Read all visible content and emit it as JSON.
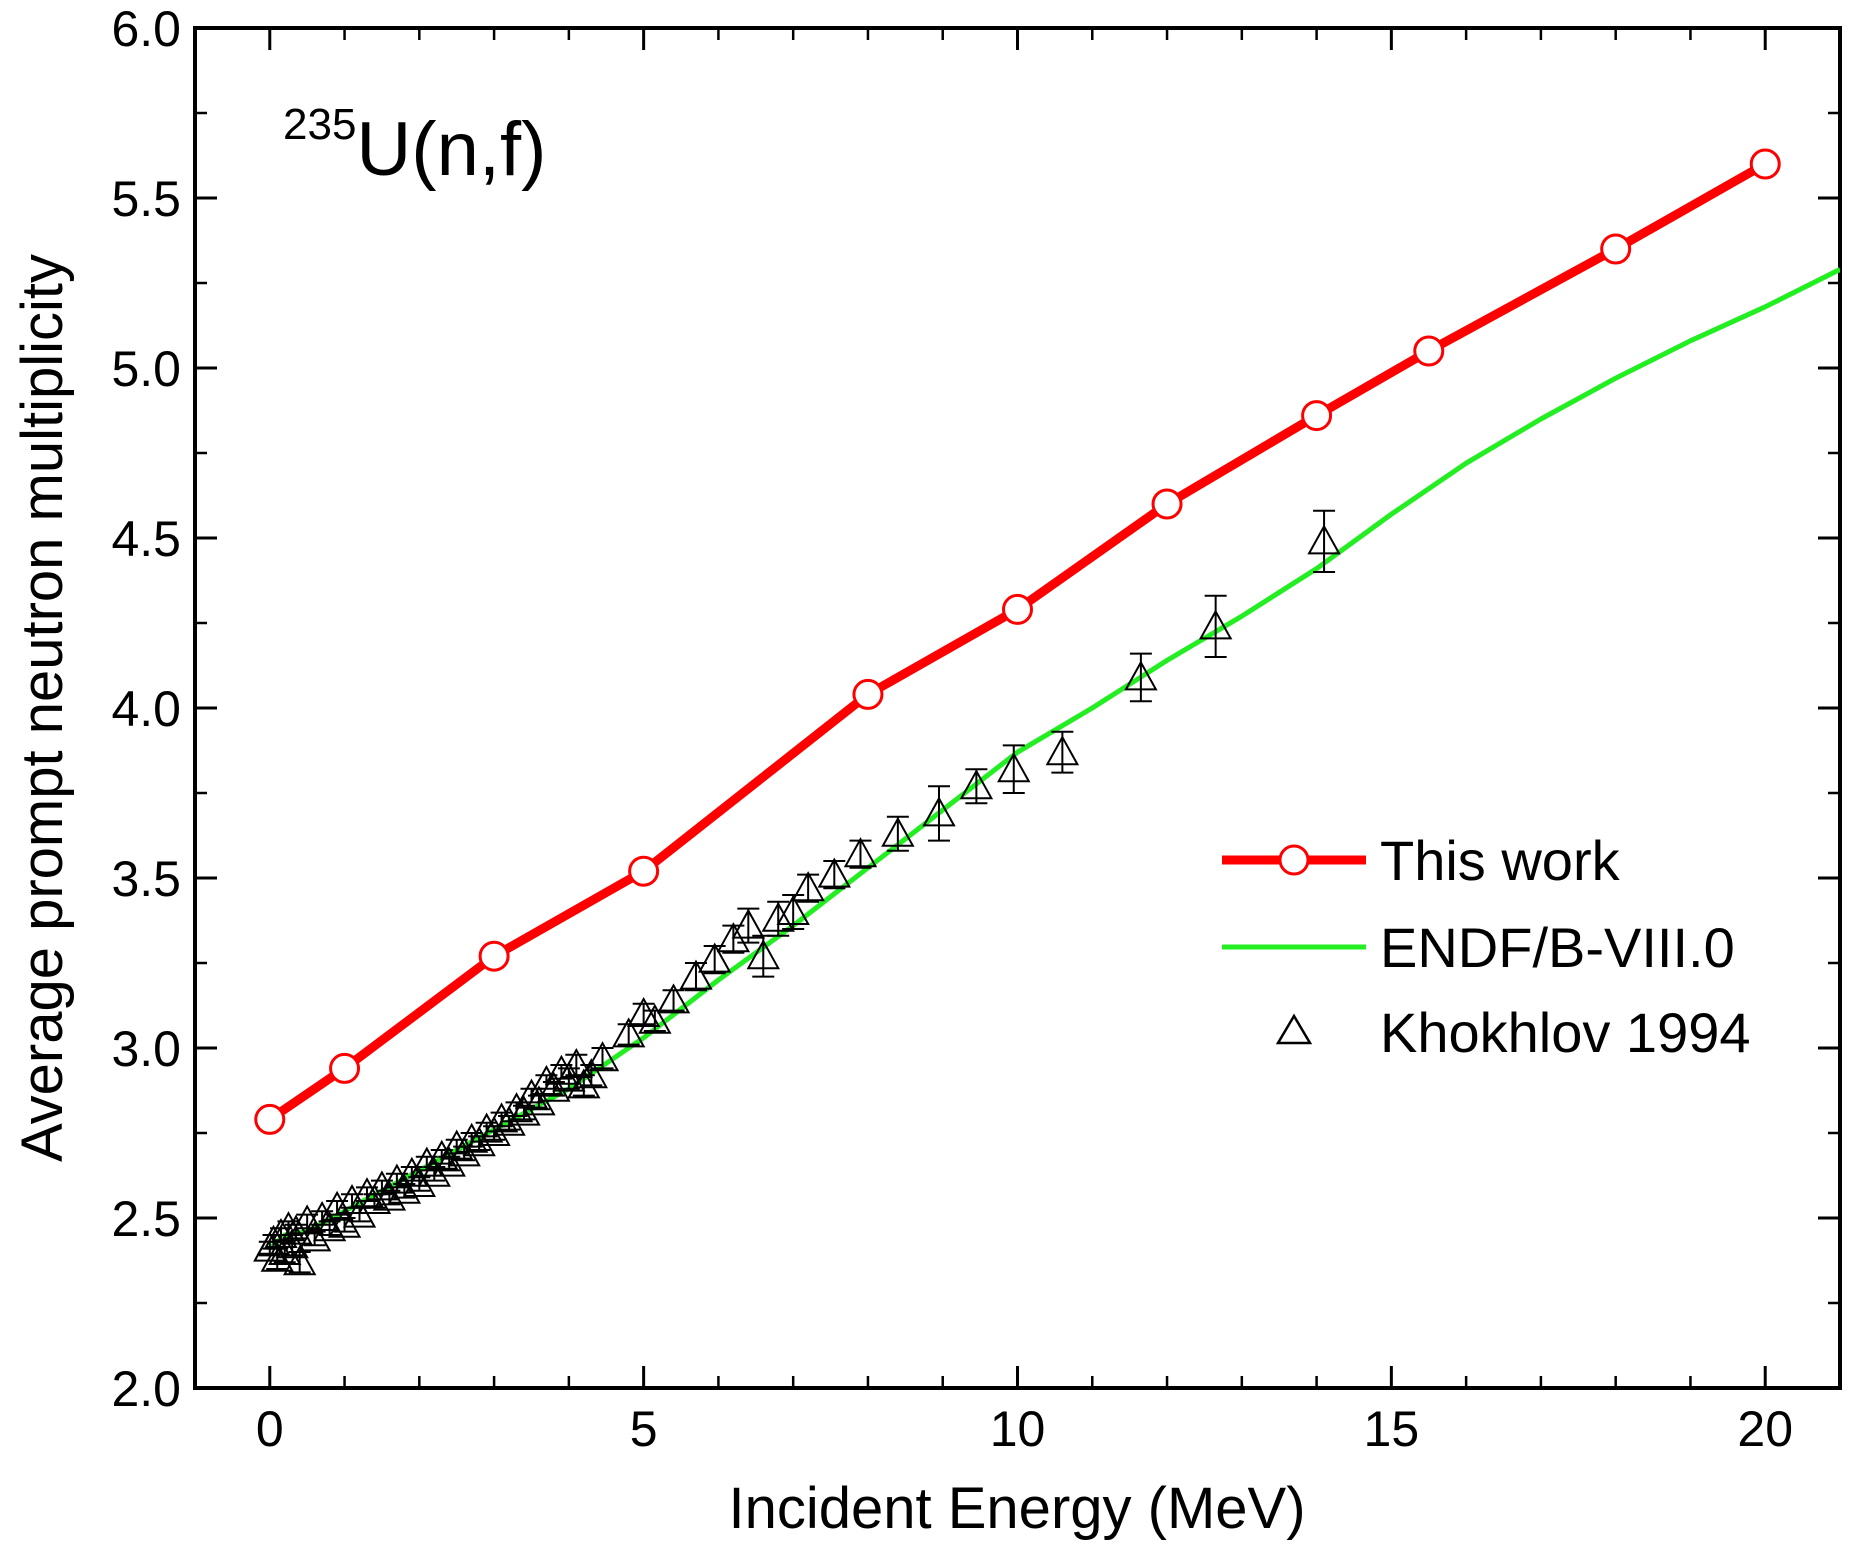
{
  "chart_data": {
    "type": "line",
    "xlabel": "Incident Energy (MeV)",
    "ylabel": "Average prompt neutron multiplicity",
    "xlim": [
      -1,
      21
    ],
    "ylim": [
      2.0,
      6.0
    ],
    "x_ticks": [
      0,
      5,
      10,
      15,
      20
    ],
    "y_ticks": [
      2.0,
      2.5,
      3.0,
      3.5,
      4.0,
      4.5,
      5.0,
      5.5,
      6.0
    ],
    "x_tick_labels": [
      "0",
      "5",
      "10",
      "15",
      "20"
    ],
    "y_tick_labels": [
      "2.0",
      "2.5",
      "3.0",
      "3.5",
      "4.0",
      "4.5",
      "5.0",
      "5.5",
      "6.0"
    ],
    "annotation": {
      "superscript": "235",
      "text": "U(n,f)"
    },
    "legend_position": "right",
    "series": [
      {
        "name": "This work",
        "style": "line-circle",
        "color": "#ff0000",
        "x": [
          0,
          1,
          3,
          5,
          8,
          10,
          12,
          14,
          15.5,
          18,
          20
        ],
        "y": [
          2.79,
          2.94,
          3.27,
          3.52,
          4.04,
          4.29,
          4.6,
          4.86,
          5.05,
          5.35,
          5.6
        ]
      },
      {
        "name": "ENDF/B-VIII.0",
        "style": "line",
        "color": "#22ee22",
        "x": [
          0,
          0.2,
          0.5,
          1,
          2,
          3,
          4,
          5,
          6,
          7,
          8,
          9,
          10,
          11,
          12,
          13,
          14,
          15,
          16,
          17,
          18,
          19,
          20,
          21
        ],
        "y": [
          2.41,
          2.45,
          2.46,
          2.52,
          2.64,
          2.76,
          2.88,
          3.03,
          3.2,
          3.36,
          3.53,
          3.7,
          3.87,
          4.0,
          4.14,
          4.27,
          4.41,
          4.57,
          4.72,
          4.85,
          4.97,
          5.08,
          5.18,
          5.29
        ]
      },
      {
        "name": "Khokhlov 1994",
        "style": "marker-triangle",
        "color": "#000000",
        "x": [
          0.0,
          0.05,
          0.1,
          0.15,
          0.2,
          0.25,
          0.3,
          0.35,
          0.4,
          0.5,
          0.6,
          0.7,
          0.8,
          0.9,
          1.0,
          1.1,
          1.2,
          1.3,
          1.4,
          1.5,
          1.6,
          1.7,
          1.8,
          1.9,
          2.0,
          2.1,
          2.2,
          2.3,
          2.4,
          2.5,
          2.6,
          2.7,
          2.8,
          2.9,
          3.0,
          3.1,
          3.2,
          3.3,
          3.4,
          3.5,
          3.6,
          3.7,
          3.8,
          3.9,
          4.0,
          4.1,
          4.2,
          4.3,
          4.45,
          4.8,
          5.0,
          5.15,
          5.4,
          5.7,
          5.95,
          6.2,
          6.4,
          6.6,
          6.8,
          7.0,
          7.2,
          7.55,
          7.9,
          8.4,
          8.95,
          9.45,
          9.95,
          10.6,
          11.65,
          12.65,
          14.1
        ],
        "y": [
          2.41,
          2.43,
          2.38,
          2.45,
          2.4,
          2.47,
          2.42,
          2.46,
          2.37,
          2.49,
          2.44,
          2.5,
          2.47,
          2.53,
          2.48,
          2.55,
          2.51,
          2.57,
          2.55,
          2.59,
          2.56,
          2.61,
          2.58,
          2.63,
          2.6,
          2.66,
          2.63,
          2.68,
          2.66,
          2.71,
          2.69,
          2.73,
          2.72,
          2.76,
          2.75,
          2.79,
          2.78,
          2.82,
          2.81,
          2.86,
          2.84,
          2.9,
          2.88,
          2.93,
          2.91,
          2.95,
          2.89,
          2.92,
          2.97,
          3.04,
          3.1,
          3.08,
          3.14,
          3.21,
          3.26,
          3.32,
          3.36,
          3.27,
          3.38,
          3.4,
          3.47,
          3.51,
          3.57,
          3.63,
          3.69,
          3.77,
          3.82,
          3.87,
          4.09,
          4.24,
          4.49
        ],
        "err": [
          0.02,
          0.02,
          0.03,
          0.02,
          0.03,
          0.02,
          0.03,
          0.02,
          0.03,
          0.02,
          0.02,
          0.02,
          0.02,
          0.02,
          0.02,
          0.02,
          0.02,
          0.02,
          0.02,
          0.02,
          0.02,
          0.02,
          0.02,
          0.02,
          0.02,
          0.02,
          0.02,
          0.02,
          0.02,
          0.02,
          0.02,
          0.02,
          0.02,
          0.02,
          0.02,
          0.02,
          0.02,
          0.02,
          0.02,
          0.02,
          0.02,
          0.02,
          0.02,
          0.02,
          0.03,
          0.03,
          0.03,
          0.03,
          0.03,
          0.03,
          0.03,
          0.03,
          0.03,
          0.04,
          0.04,
          0.04,
          0.05,
          0.06,
          0.05,
          0.05,
          0.04,
          0.04,
          0.04,
          0.05,
          0.08,
          0.05,
          0.07,
          0.06,
          0.07,
          0.09,
          0.09
        ]
      }
    ]
  }
}
